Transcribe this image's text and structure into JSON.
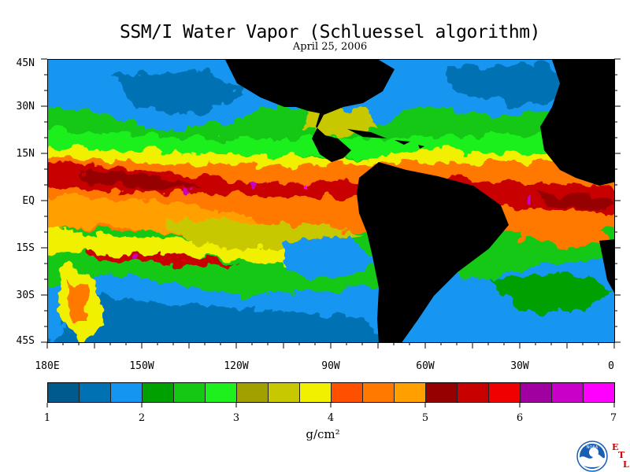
{
  "title": "SSM/I Water Vapor (Schluessel algorithm)",
  "subtitle": "April 25, 2006",
  "axes": {
    "lat_labels": [
      "45N",
      "30N",
      "15N",
      "EQ",
      "15S",
      "30S",
      "45S"
    ],
    "lon_labels": [
      "180E",
      "150W",
      "120W",
      "90W",
      "60W",
      "30W",
      "0"
    ]
  },
  "colorbar": {
    "unit": "g/cm²",
    "tick_labels": [
      "1",
      "2",
      "3",
      "4",
      "5",
      "6",
      "7"
    ],
    "colors": [
      "#005a8c",
      "#0072b4",
      "#1496f0",
      "#00a000",
      "#14c814",
      "#1ef01e",
      "#a0a000",
      "#c8c800",
      "#f0f000",
      "#ff5000",
      "#ff7800",
      "#ffa000",
      "#960000",
      "#c80000",
      "#f00000",
      "#a000a0",
      "#c800c8",
      "#ff00ff"
    ]
  },
  "logos": {
    "noaa": "NOAA",
    "etl": "ETL"
  }
}
